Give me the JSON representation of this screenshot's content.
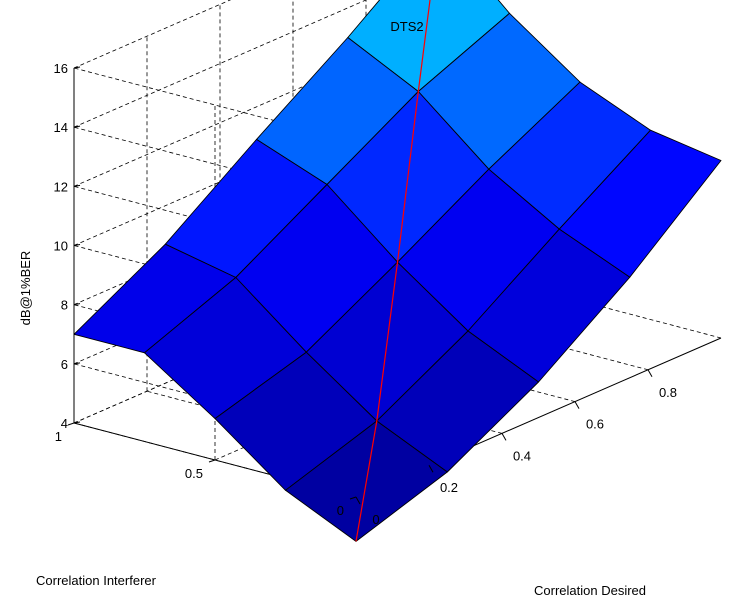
{
  "chart_data": {
    "type": "surface3d",
    "title": "DTS2",
    "xlabel": "Correlation Desired",
    "ylabel": "Correlation Interferer",
    "zlabel": "dB@1%BER",
    "x_ticks": [
      "0",
      "0.2",
      "0.4",
      "0.6",
      "0.8"
    ],
    "y_ticks": [
      "0",
      "0.5",
      "1"
    ],
    "z_ticks": [
      "4",
      "6",
      "8",
      "10",
      "12",
      "14",
      "16"
    ],
    "xlim": [
      0,
      1
    ],
    "ylim": [
      0,
      1
    ],
    "zlim": [
      4,
      16
    ],
    "grid": true,
    "colormap": [
      "#00008f",
      "#0000ff",
      "#00ffff"
    ],
    "x": [
      0,
      0.25,
      0.5,
      0.75,
      1
    ],
    "y": [
      0,
      0.25,
      0.5,
      0.75,
      1
    ],
    "z": [
      [
        2.5,
        3.5,
        5.2,
        7.4,
        10.0
      ],
      [
        3.6,
        4.6,
        6.3,
        8.4,
        10.4
      ],
      [
        5.4,
        6.3,
        8.0,
        9.8,
        11.4
      ],
      [
        7.0,
        8.2,
        10.0,
        11.8,
        13.1
      ],
      [
        7.0,
        8.7,
        10.9,
        13.0,
        15.3
      ]
    ],
    "diagonal_line": {
      "color": "#ff0000"
    }
  }
}
